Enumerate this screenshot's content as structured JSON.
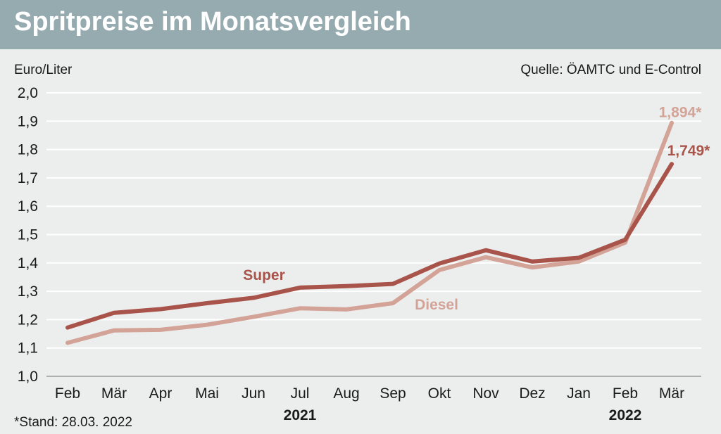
{
  "header": {
    "title": "Spritpreise im Monatsvergleich"
  },
  "chart_data": {
    "type": "line",
    "ylabel": "Euro/Liter",
    "source": "Quelle: ÖAMTC und E-Control",
    "footnote": "*Stand: 28.03. 2022",
    "categories": [
      "Feb",
      "Mär",
      "Apr",
      "Mai",
      "Jun",
      "Jul",
      "Aug",
      "Sep",
      "Okt",
      "Nov",
      "Dez",
      "Jan",
      "Feb",
      "Mär"
    ],
    "year_labels": [
      {
        "label": "2021",
        "category_index": 5
      },
      {
        "label": "2022",
        "category_index": 12
      }
    ],
    "ylim": [
      1.0,
      2.0
    ],
    "yticks": [
      "1,0",
      "1,1",
      "1,2",
      "1,3",
      "1,4",
      "1,5",
      "1,6",
      "1,7",
      "1,8",
      "1,9",
      "2,0"
    ],
    "grid": true,
    "series": [
      {
        "name": "Super",
        "color": "#a8544a",
        "values": [
          1.172,
          1.224,
          1.237,
          1.258,
          1.277,
          1.313,
          1.318,
          1.326,
          1.398,
          1.445,
          1.405,
          1.418,
          1.482,
          1.749
        ],
        "end_label": "1,749*"
      },
      {
        "name": "Diesel",
        "color": "#d4a397",
        "values": [
          1.118,
          1.162,
          1.164,
          1.182,
          1.21,
          1.24,
          1.236,
          1.258,
          1.375,
          1.42,
          1.384,
          1.405,
          1.472,
          1.894
        ],
        "end_label": "1,894*"
      }
    ]
  }
}
